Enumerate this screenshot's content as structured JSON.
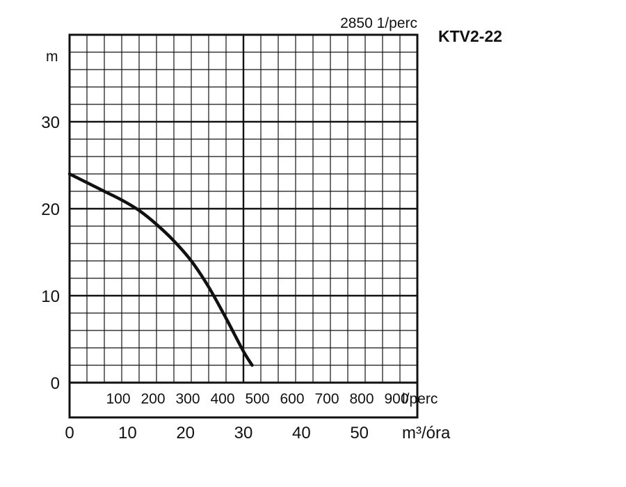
{
  "chart_data": {
    "type": "line",
    "title": "KTV2-22",
    "subtitle": "2850 1/perc",
    "ylabel": "m",
    "ylim": [
      0,
      40
    ],
    "y_ticks": [
      0,
      10,
      20,
      30
    ],
    "y_minor_step": 2,
    "x_primary": {
      "unit_label": "m³/óra",
      "lim": [
        0,
        60
      ],
      "ticks": [
        0,
        10,
        20,
        30,
        40,
        50
      ],
      "minor_step": 3
    },
    "x_secondary": {
      "unit_label": "l/perc",
      "lim": [
        0,
        1000
      ],
      "ticks": [
        100,
        200,
        300,
        400,
        500,
        600,
        700,
        800,
        900
      ]
    },
    "grid": true,
    "series": [
      {
        "x": [
          0,
          3,
          6,
          9,
          12,
          15,
          18,
          21,
          24,
          27,
          30,
          31.5
        ],
        "values": [
          24,
          23,
          22,
          21,
          19.8,
          18.2,
          16.3,
          14,
          11,
          7.4,
          3.6,
          2
        ]
      }
    ]
  }
}
